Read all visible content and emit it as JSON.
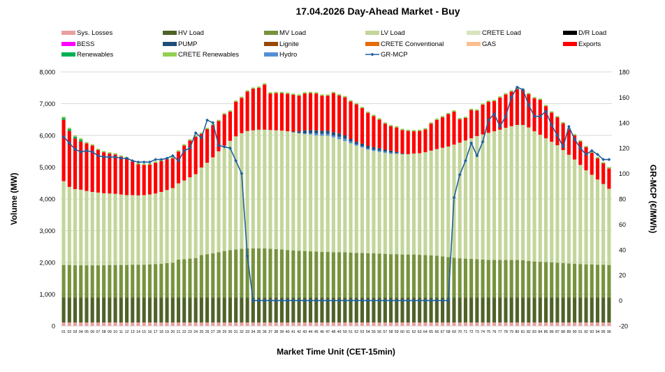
{
  "chart_data": {
    "type": "bar",
    "stacked": true,
    "title": "17.04.2026  Day-Ahead Market - Buy",
    "xlabel": "Market Time Unit (CET-15min)",
    "ylabel": "Volume (MW)",
    "y2label": "GR-MCP (€/MWh)",
    "ylim": [
      0,
      8000
    ],
    "y2lim": [
      -20,
      180
    ],
    "yticks": [
      "0",
      "1,000",
      "2,000",
      "3,000",
      "4,000",
      "5,000",
      "6,000",
      "7,000",
      "8,000"
    ],
    "y2ticks": [
      "-20",
      "0",
      "20",
      "40",
      "60",
      "80",
      "100",
      "120",
      "140",
      "160",
      "180"
    ],
    "categories": [
      "01",
      "02",
      "03",
      "04",
      "05",
      "06",
      "07",
      "08",
      "09",
      "10",
      "11",
      "12",
      "13",
      "14",
      "15",
      "16",
      "17",
      "18",
      "19",
      "20",
      "21",
      "22",
      "23",
      "24",
      "25",
      "26",
      "27",
      "28",
      "29",
      "30",
      "31",
      "32",
      "33",
      "34",
      "35",
      "36",
      "37",
      "38",
      "39",
      "40",
      "41",
      "42",
      "43",
      "44",
      "45",
      "46",
      "47",
      "48",
      "49",
      "50",
      "51",
      "52",
      "53",
      "54",
      "55",
      "56",
      "57",
      "58",
      "59",
      "60",
      "61",
      "62",
      "63",
      "64",
      "65",
      "66",
      "67",
      "68",
      "69",
      "70",
      "71",
      "72",
      "73",
      "74",
      "75",
      "76",
      "77",
      "78",
      "79",
      "80",
      "81",
      "82",
      "83",
      "84",
      "85",
      "86",
      "87",
      "88",
      "89",
      "90",
      "91",
      "92",
      "93",
      "94",
      "95",
      "96"
    ],
    "legend": [
      {
        "name": "Sys. Losses",
        "color": "#e8a0a0"
      },
      {
        "name": "HV Load",
        "color": "#4f6228"
      },
      {
        "name": "MV Load",
        "color": "#77933c"
      },
      {
        "name": "LV Load",
        "color": "#c3d69b"
      },
      {
        "name": "CRETE Load",
        "color": "#d7e4bd"
      },
      {
        "name": "D/R Load",
        "color": "#000000"
      },
      {
        "name": "BESS",
        "color": "#ff00ff"
      },
      {
        "name": "PUMP",
        "color": "#1f4e79"
      },
      {
        "name": "Lignite",
        "color": "#984807"
      },
      {
        "name": "CRETE Conventional",
        "color": "#e46c0a"
      },
      {
        "name": "GAS",
        "color": "#fac090"
      },
      {
        "name": "Exports",
        "color": "#ff0000"
      },
      {
        "name": "Renewables",
        "color": "#00b050"
      },
      {
        "name": "CRETE Renewables",
        "color": "#92d050"
      },
      {
        "name": "Hydro",
        "color": "#558ed5"
      },
      {
        "name": "GR-MCP",
        "color": "#1f5f9e"
      }
    ],
    "series": [
      {
        "name": "Sys. Losses",
        "values": [
          110,
          110,
          110,
          110,
          110,
          110,
          110,
          110,
          110,
          110,
          110,
          110,
          110,
          110,
          110,
          110,
          110,
          110,
          110,
          110,
          110,
          110,
          110,
          110,
          110,
          110,
          110,
          110,
          110,
          110,
          110,
          110,
          110,
          110,
          110,
          110,
          110,
          110,
          110,
          110,
          110,
          110,
          110,
          110,
          110,
          110,
          110,
          110,
          110,
          110,
          110,
          110,
          110,
          110,
          110,
          110,
          110,
          110,
          110,
          110,
          110,
          110,
          110,
          110,
          110,
          110,
          110,
          110,
          110,
          110,
          110,
          110,
          110,
          110,
          110,
          110,
          110,
          110,
          110,
          110,
          110,
          110,
          110,
          110,
          110,
          110,
          110,
          110,
          110,
          110,
          110,
          110,
          110,
          110,
          110,
          110
        ]
      },
      {
        "name": "HV Load",
        "values": [
          780,
          780,
          780,
          780,
          780,
          780,
          780,
          780,
          780,
          780,
          780,
          780,
          780,
          780,
          780,
          780,
          780,
          780,
          780,
          780,
          780,
          780,
          780,
          780,
          780,
          780,
          780,
          780,
          780,
          780,
          780,
          780,
          780,
          780,
          780,
          780,
          780,
          780,
          780,
          780,
          780,
          780,
          780,
          780,
          780,
          780,
          780,
          780,
          780,
          780,
          780,
          780,
          780,
          780,
          780,
          780,
          780,
          780,
          780,
          780,
          780,
          780,
          780,
          780,
          780,
          780,
          780,
          780,
          780,
          780,
          780,
          780,
          780,
          780,
          780,
          780,
          780,
          780,
          780,
          780,
          780,
          780,
          780,
          780,
          780,
          780,
          780,
          780,
          780,
          780,
          780,
          780,
          780,
          780,
          780,
          780
        ]
      },
      {
        "name": "MV Load",
        "values": [
          1030,
          1030,
          1020,
          1020,
          1020,
          1020,
          1020,
          1020,
          1030,
          1030,
          1030,
          1030,
          1040,
          1040,
          1040,
          1050,
          1060,
          1070,
          1090,
          1100,
          1200,
          1210,
          1230,
          1250,
          1340,
          1370,
          1400,
          1430,
          1470,
          1500,
          1520,
          1540,
          1550,
          1550,
          1550,
          1550,
          1540,
          1530,
          1520,
          1500,
          1490,
          1480,
          1470,
          1460,
          1450,
          1440,
          1440,
          1430,
          1430,
          1430,
          1420,
          1410,
          1410,
          1400,
          1400,
          1390,
          1380,
          1370,
          1370,
          1360,
          1360,
          1360,
          1350,
          1340,
          1330,
          1320,
          1300,
          1280,
          1260,
          1240,
          1230,
          1220,
          1210,
          1200,
          1190,
          1190,
          1190,
          1190,
          1190,
          1190,
          1180,
          1160,
          1140,
          1130,
          1120,
          1110,
          1100,
          1090,
          1080,
          1070,
          1060,
          1050,
          1050,
          1040,
          1040,
          1030
        ]
      },
      {
        "name": "LV Load",
        "values": [
          2640,
          2460,
          2400,
          2380,
          2340,
          2310,
          2290,
          2270,
          2250,
          2240,
          2220,
          2200,
          2190,
          2180,
          2190,
          2200,
          2220,
          2260,
          2300,
          2350,
          2400,
          2480,
          2560,
          2640,
          2760,
          2880,
          3020,
          3180,
          3320,
          3440,
          3560,
          3640,
          3700,
          3720,
          3740,
          3740,
          3740,
          3740,
          3740,
          3740,
          3720,
          3700,
          3680,
          3680,
          3660,
          3660,
          3660,
          3620,
          3560,
          3500,
          3440,
          3380,
          3320,
          3260,
          3220,
          3200,
          3180,
          3160,
          3160,
          3160,
          3160,
          3180,
          3200,
          3240,
          3300,
          3360,
          3420,
          3480,
          3560,
          3640,
          3720,
          3800,
          3880,
          3940,
          4000,
          4050,
          4100,
          4160,
          4210,
          4250,
          4260,
          4200,
          4100,
          4000,
          3900,
          3800,
          3700,
          3560,
          3420,
          3280,
          3120,
          2960,
          2820,
          2680,
          2540,
          2400
        ]
      },
      {
        "name": "Hydro",
        "values": [
          0,
          0,
          0,
          0,
          0,
          0,
          0,
          0,
          0,
          0,
          0,
          0,
          0,
          0,
          0,
          0,
          0,
          0,
          0,
          0,
          0,
          0,
          0,
          0,
          0,
          0,
          0,
          0,
          0,
          0,
          0,
          0,
          0,
          0,
          0,
          0,
          0,
          0,
          0,
          0,
          0,
          0,
          20,
          40,
          60,
          60,
          60,
          60,
          80,
          80,
          60,
          40,
          40,
          40,
          40,
          40,
          40,
          40,
          20,
          0,
          0,
          0,
          0,
          0,
          0,
          0,
          0,
          0,
          0,
          0,
          0,
          0,
          0,
          0,
          0,
          0,
          0,
          0,
          0,
          0,
          0,
          0,
          0,
          0,
          0,
          0,
          0,
          0,
          0,
          0,
          0,
          0,
          0,
          0,
          0,
          0
        ]
      },
      {
        "name": "PUMP",
        "values": [
          0,
          0,
          0,
          0,
          0,
          0,
          0,
          0,
          0,
          0,
          0,
          0,
          0,
          0,
          0,
          0,
          0,
          0,
          0,
          0,
          0,
          0,
          0,
          0,
          0,
          0,
          0,
          0,
          0,
          0,
          0,
          0,
          0,
          0,
          0,
          0,
          0,
          0,
          0,
          0,
          20,
          60,
          100,
          100,
          100,
          100,
          100,
          100,
          100,
          100,
          80,
          80,
          80,
          80,
          80,
          80,
          60,
          60,
          40,
          20,
          0,
          0,
          0,
          0,
          0,
          0,
          0,
          0,
          0,
          0,
          0,
          0,
          0,
          0,
          0,
          0,
          0,
          0,
          0,
          0,
          0,
          0,
          0,
          0,
          0,
          0,
          0,
          0,
          0,
          0,
          0,
          0,
          0,
          0,
          0,
          0
        ]
      },
      {
        "name": "Exports",
        "values": [
          1930,
          1760,
          1590,
          1520,
          1500,
          1460,
          1340,
          1290,
          1260,
          1240,
          1190,
          1160,
          1060,
          980,
          950,
          940,
          970,
          970,
          970,
          940,
          1000,
          1100,
          1160,
          1180,
          1060,
          1060,
          1010,
          950,
          980,
          920,
          1090,
          1110,
          1240,
          1310,
          1320,
          1420,
          1150,
          1170,
          1180,
          1180,
          1160,
          1120,
          1160,
          1160,
          1160,
          1100,
          1100,
          1230,
          1200,
          1200,
          1180,
          1180,
          1120,
          1040,
          980,
          900,
          820,
          770,
          770,
          740,
          730,
          700,
          700,
          720,
          850,
          920,
          960,
          1020,
          1040,
          740,
          710,
          890,
          800,
          940,
          980,
          950,
          1010,
          1050,
          1090,
          1130,
          1100,
          1050,
          1040,
          1100,
          1010,
          920,
          880,
          840,
          800,
          760,
          740,
          730,
          690,
          670,
          650,
          640
        ]
      },
      {
        "name": "Renewables",
        "values": [
          60,
          60,
          60,
          60,
          0,
          0,
          0,
          0,
          0,
          0,
          0,
          0,
          0,
          0,
          0,
          0,
          0,
          0,
          0,
          0,
          0,
          0,
          0,
          0,
          0,
          0,
          0,
          0,
          0,
          0,
          0,
          0,
          0,
          0,
          0,
          0,
          0,
          0,
          0,
          0,
          0,
          0,
          0,
          0,
          0,
          0,
          0,
          0,
          0,
          0,
          0,
          0,
          0,
          0,
          0,
          0,
          0,
          0,
          0,
          0,
          0,
          0,
          0,
          0,
          0,
          0,
          0,
          0,
          0,
          0,
          0,
          0,
          0,
          0,
          0,
          0,
          0,
          0,
          0,
          0,
          0,
          0,
          0,
          0,
          0,
          0,
          0,
          0,
          0,
          0,
          0,
          0,
          0,
          0,
          0,
          0
        ]
      },
      {
        "name": "CRETE Renewables",
        "values": [
          40,
          40,
          40,
          40,
          40,
          40,
          40,
          40,
          40,
          40,
          40,
          40,
          40,
          40,
          40,
          40,
          40,
          40,
          40,
          40,
          40,
          40,
          40,
          40,
          40,
          40,
          40,
          40,
          40,
          40,
          40,
          40,
          40,
          40,
          40,
          40,
          40,
          40,
          40,
          40,
          40,
          40,
          40,
          40,
          40,
          40,
          40,
          40,
          40,
          40,
          40,
          40,
          40,
          40,
          40,
          40,
          40,
          40,
          40,
          40,
          40,
          40,
          40,
          40,
          40,
          40,
          40,
          40,
          40,
          40,
          40,
          40,
          40,
          40,
          40,
          40,
          40,
          40,
          40,
          40,
          40,
          40,
          40,
          40,
          40,
          40,
          40,
          40,
          40,
          40,
          40,
          40,
          40,
          40,
          40,
          40
        ]
      }
    ],
    "line": {
      "name": "GR-MCP",
      "axis": "secondary",
      "values": [
        129,
        124,
        119,
        117,
        118,
        117,
        114,
        113,
        113,
        113,
        112,
        112,
        110,
        109,
        109,
        109,
        111,
        111,
        112,
        114,
        110,
        118,
        120,
        132,
        128,
        142,
        140,
        122,
        121,
        120,
        110,
        100,
        35,
        0,
        0,
        0,
        0,
        0,
        0,
        0,
        0,
        0,
        0,
        0,
        0,
        0,
        0,
        0,
        0,
        0,
        0,
        0,
        0,
        0,
        0,
        0,
        0,
        0,
        0,
        0,
        0,
        0,
        0,
        0,
        0,
        0,
        0,
        0,
        81,
        99,
        110,
        124,
        114,
        125,
        142,
        147,
        137,
        145,
        160,
        168,
        166,
        154,
        145,
        145,
        149,
        138,
        130,
        121,
        137,
        127,
        120,
        115,
        118,
        115,
        111,
        111
      ]
    }
  }
}
